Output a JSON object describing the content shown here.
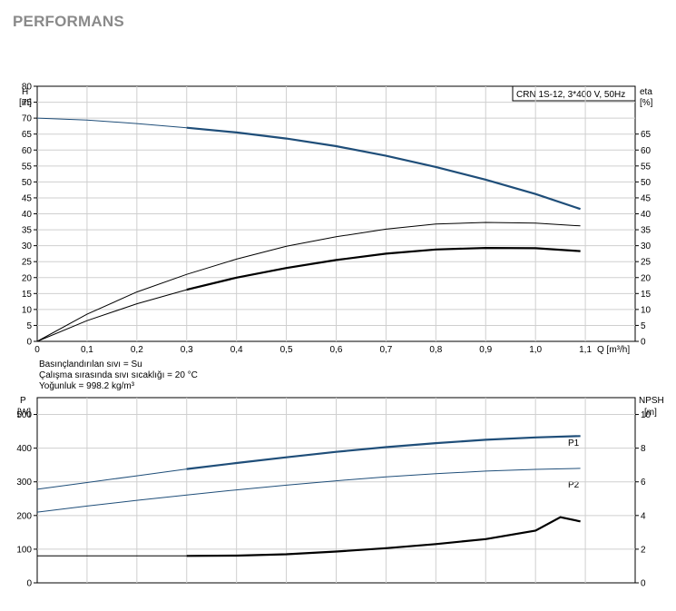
{
  "page": {
    "title": "PERFORMANS"
  },
  "colors": {
    "blue": "#1f4e79",
    "black": "#000000",
    "grid": "#cfcfcf"
  },
  "chart_data": [
    {
      "type": "line",
      "model_label": "CRN 1S-12, 3*400 V, 50Hz",
      "xlabel": "Q [m³/h]",
      "x_ticks": [
        "0",
        "0,1",
        "0,2",
        "0,3",
        "0,4",
        "0,5",
        "0,6",
        "0,7",
        "0,8",
        "0,9",
        "1,0",
        "1,1"
      ],
      "xlim": [
        0,
        1.2
      ],
      "ylabel_left": [
        "H",
        "[m]"
      ],
      "ylim_left": [
        0,
        80
      ],
      "y_ticks_left": [
        0,
        5,
        10,
        15,
        20,
        25,
        30,
        35,
        40,
        45,
        50,
        55,
        60,
        65,
        70,
        75,
        80
      ],
      "ylabel_right": [
        "eta",
        "[%]"
      ],
      "ylim_right": [
        0,
        80
      ],
      "y_ticks_right": [
        0,
        5,
        10,
        15,
        20,
        25,
        30,
        35,
        40,
        45,
        50,
        55,
        60,
        65
      ],
      "grid": true,
      "notes": [
        "Basınçlandırılan sıvı = Su",
        "Çalışma sırasında sıvı sıcaklığı = 20 °C",
        "Yoğunluk = 998.2 kg/m³"
      ],
      "series": [
        {
          "axis": "left",
          "color": "#1f4e79",
          "op_start": 0.3,
          "x": [
            0,
            0.1,
            0.2,
            0.3,
            0.4,
            0.5,
            0.6,
            0.7,
            0.8,
            0.9,
            1.0,
            1.09
          ],
          "y": [
            70,
            69.4,
            68.3,
            67,
            65.5,
            63.6,
            61.2,
            58.2,
            54.7,
            50.7,
            46.2,
            41.5
          ]
        },
        {
          "axis": "right",
          "color": "#000000",
          "op_start": null,
          "x": [
            0,
            0.1,
            0.2,
            0.3,
            0.4,
            0.5,
            0.6,
            0.7,
            0.8,
            0.9,
            1.0,
            1.09
          ],
          "y": [
            0,
            8.5,
            15.5,
            21,
            25.8,
            29.8,
            32.8,
            35.2,
            36.8,
            37.3,
            37.1,
            36.2
          ]
        },
        {
          "axis": "right",
          "color": "#000000",
          "op_start": 0.3,
          "x": [
            0,
            0.1,
            0.2,
            0.3,
            0.4,
            0.5,
            0.6,
            0.7,
            0.8,
            0.9,
            1.0,
            1.09
          ],
          "y": [
            0,
            6.5,
            11.8,
            16.2,
            20,
            23,
            25.5,
            27.5,
            28.8,
            29.3,
            29.2,
            28.3
          ]
        }
      ]
    },
    {
      "type": "line",
      "xlim": [
        0,
        1.2
      ],
      "ylabel_left": [
        "P",
        "[W]"
      ],
      "ylim_left": [
        0,
        550
      ],
      "y_ticks_left": [
        0,
        100,
        200,
        300,
        400,
        500
      ],
      "ylabel_right": [
        "NPSH",
        "[m]"
      ],
      "ylim_right": [
        0,
        11
      ],
      "y_ticks_right": [
        0,
        2,
        4,
        6,
        8,
        10
      ],
      "grid": true,
      "series": [
        {
          "name": "P1",
          "axis": "left",
          "color": "#1f4e79",
          "op_start": 0.3,
          "x": [
            0,
            0.1,
            0.2,
            0.3,
            0.4,
            0.5,
            0.6,
            0.7,
            0.8,
            0.9,
            1.0,
            1.09
          ],
          "y": [
            278,
            298,
            318,
            338,
            356,
            373,
            389,
            403,
            415,
            425,
            432,
            436
          ]
        },
        {
          "name": "P2",
          "axis": "left",
          "color": "#1f4e79",
          "op_start": null,
          "x": [
            0,
            0.1,
            0.2,
            0.3,
            0.4,
            0.5,
            0.6,
            0.7,
            0.8,
            0.9,
            1.0,
            1.09
          ],
          "y": [
            210,
            228,
            245,
            261,
            276,
            290,
            303,
            315,
            324,
            332,
            337,
            340
          ]
        },
        {
          "axis": "right",
          "color": "#000000",
          "op_start": 0.3,
          "x": [
            0,
            0.1,
            0.2,
            0.3,
            0.4,
            0.5,
            0.6,
            0.7,
            0.8,
            0.9,
            1.0,
            1.05,
            1.09
          ],
          "y": [
            1.6,
            1.6,
            1.6,
            1.6,
            1.62,
            1.7,
            1.86,
            2.06,
            2.3,
            2.6,
            3.1,
            3.9,
            3.65
          ]
        }
      ]
    }
  ]
}
